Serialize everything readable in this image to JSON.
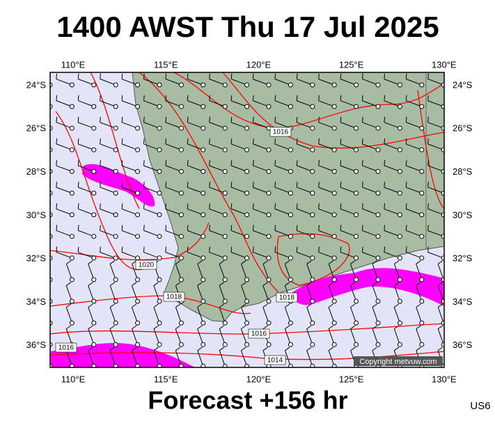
{
  "title": "1400 AWST Thu 17 Jul 2025",
  "footer": "Forecast +156 hr",
  "model": "US6",
  "copyright": "Copyright metvuw.com",
  "lon_labels": [
    "110°E",
    "115°E",
    "120°E",
    "125°E",
    "130°E"
  ],
  "lat_labels": [
    "24°S",
    "26°S",
    "28°S",
    "30°S",
    "32°S",
    "34°S",
    "36°S"
  ],
  "isobar_labels": [
    "1016",
    "1018",
    "1020",
    "1018",
    "1016",
    "1016",
    "1014"
  ]
}
